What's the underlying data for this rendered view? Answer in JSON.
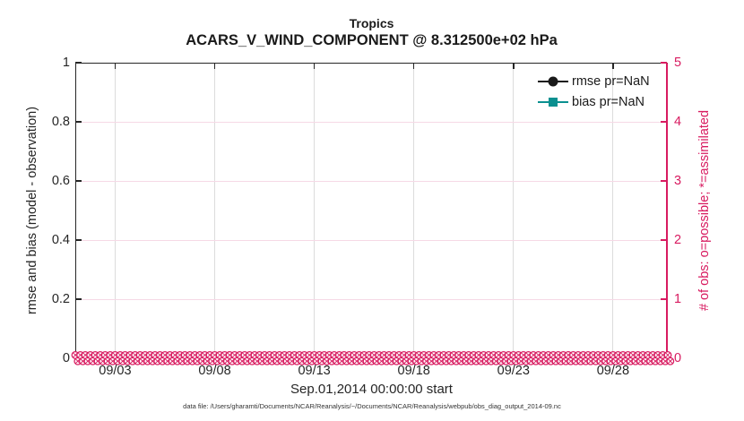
{
  "figure": {
    "title_line1": "Tropics",
    "title_line2": "ACARS_V_WIND_COMPONENT @ 8.312500e+02 hPa",
    "xlabel": "Sep.01,2014 00:00:00 start",
    "ylabel_left": "rmse and bias (model - observation)",
    "ylabel_right": "# of obs: o=possible; *=assimilated",
    "footer": "data file: /Users/gharamti/Documents/NCAR/Reanalysis/~/Documents/NCAR/Reanalysis/webpub/obs_diag_output_2014-09.nc"
  },
  "legend": {
    "items": [
      {
        "label": "rmse pr=NaN",
        "color": "#1a1a1a",
        "marker": "circle"
      },
      {
        "label": "bias pr=NaN",
        "color": "#0b9090",
        "marker": "square"
      }
    ]
  },
  "chart_data": {
    "type": "line",
    "title": "Tropics",
    "subtitle": "ACARS_V_WIND_COMPONENT @ 8.312500e+02 hPa",
    "xlabel": "Sep.01,2014 00:00:00 start",
    "ylabel_left": "rmse and bias (model - observation)",
    "ylabel_right": "# of obs: o=possible; *=assimilated",
    "x_tick_labels": [
      "09/03",
      "09/08",
      "09/13",
      "09/18",
      "09/23",
      "09/28"
    ],
    "x_tick_days": [
      3,
      8,
      13,
      18,
      23,
      28
    ],
    "x_range_days": [
      1,
      30.75
    ],
    "ylim_left": [
      0,
      1
    ],
    "ylim_right": [
      0,
      5
    ],
    "y_ticks_left": {
      "values": [
        0,
        0.2,
        0.4,
        0.6,
        0.8,
        1
      ],
      "labels": [
        "0",
        "0.2",
        "0.4",
        "0.6",
        "0.8",
        "1"
      ]
    },
    "y_ticks_right": {
      "values": [
        0,
        1,
        2,
        3,
        4,
        5
      ],
      "labels": [
        "0",
        "1",
        "2",
        "3",
        "4",
        "5"
      ]
    },
    "grid": true,
    "legend_position": "top-right",
    "series": [
      {
        "name": "rmse pr=NaN",
        "color": "#1a1a1a",
        "marker": "circle",
        "values": "NaN",
        "note": "no curve plotted (all NaN)"
      },
      {
        "name": "bias pr=NaN",
        "color": "#0b9090",
        "marker": "square",
        "values": "NaN",
        "note": "no curve plotted (all NaN)"
      },
      {
        "name": "# obs possible (o)",
        "color": "#d81b60",
        "marker": "circle-x",
        "constant_value": 0,
        "n_points": 120,
        "axis": "right"
      },
      {
        "name": "# obs assimilated (*)",
        "color": "#d81b60",
        "marker": "circle-x",
        "constant_value": 0,
        "n_points": 120,
        "axis": "right"
      }
    ],
    "colors": {
      "accent_pink": "#d81b60",
      "grid_vertical": "#dcdcdc",
      "grid_horizontal_pink": "#f6d9e6",
      "axis_dark": "#262626",
      "teal": "#0b9090"
    }
  }
}
